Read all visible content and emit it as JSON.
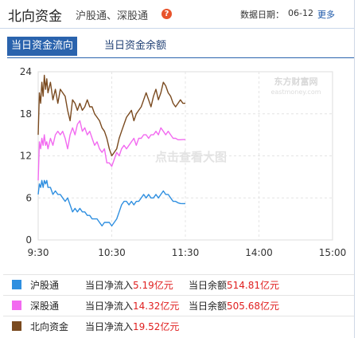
{
  "header": {
    "title": "北向资金",
    "subtitle": "沪股通、深股通",
    "help_glyph": "?",
    "date_label": "数据日期：",
    "date_value": "06-12",
    "more_label": "更多"
  },
  "tabs": [
    {
      "label": "当日资金流向",
      "active": true
    },
    {
      "label": "当日资金余额",
      "active": false
    }
  ],
  "watermark": {
    "cn": "东方财富网",
    "en": "eastmoney.com",
    "center_text": "点击查看大图"
  },
  "colors": {
    "hgt": "#2f8fe0",
    "sgt": "#f26af0",
    "north": "#7a4a1f",
    "accent": "#2a63ad",
    "value_red": "#e02020"
  },
  "chart_data": {
    "type": "line",
    "title": "",
    "xlabel": "",
    "ylabel": "",
    "ylim": [
      0,
      24
    ],
    "yticks": [
      "0",
      "6",
      "12",
      "18",
      "24"
    ],
    "xticks": [
      "9:30",
      "10:30",
      "11:30",
      "14:00",
      "15:00"
    ],
    "x_minutes_range": [
      0,
      240
    ],
    "grid": true,
    "series": [
      {
        "name": "北向资金",
        "color": "#7a4a1f",
        "points": [
          [
            0,
            15
          ],
          [
            1,
            21
          ],
          [
            2,
            19.5
          ],
          [
            3,
            22.5
          ],
          [
            4,
            20.5
          ],
          [
            5,
            23.5
          ],
          [
            6,
            21.5
          ],
          [
            7,
            23
          ],
          [
            8,
            21
          ],
          [
            10,
            22.5
          ],
          [
            12,
            20
          ],
          [
            14,
            21.5
          ],
          [
            16,
            19.5
          ],
          [
            18,
            21.5
          ],
          [
            20,
            21
          ],
          [
            22,
            20.5
          ],
          [
            24,
            18.5
          ],
          [
            26,
            17
          ],
          [
            28,
            20
          ],
          [
            30,
            19.5
          ],
          [
            32,
            18.5
          ],
          [
            34,
            19.5
          ],
          [
            36,
            18.5
          ],
          [
            38,
            19
          ],
          [
            40,
            20
          ],
          [
            42,
            19
          ],
          [
            44,
            19
          ],
          [
            46,
            18
          ],
          [
            48,
            17.5
          ],
          [
            50,
            17
          ],
          [
            52,
            16
          ],
          [
            54,
            15.5
          ],
          [
            56,
            14.5
          ],
          [
            58,
            13
          ],
          [
            60,
            12
          ],
          [
            62,
            12.5
          ],
          [
            64,
            13
          ],
          [
            66,
            14.5
          ],
          [
            68,
            15.5
          ],
          [
            70,
            16.5
          ],
          [
            72,
            17.5
          ],
          [
            74,
            18
          ],
          [
            76,
            18.5
          ],
          [
            78,
            17
          ],
          [
            80,
            18
          ],
          [
            82,
            18.5
          ],
          [
            84,
            19
          ],
          [
            86,
            20
          ],
          [
            88,
            21
          ],
          [
            90,
            20
          ],
          [
            92,
            19
          ],
          [
            94,
            20.5
          ],
          [
            96,
            21.5
          ],
          [
            98,
            20
          ],
          [
            100,
            21
          ],
          [
            102,
            22.5
          ],
          [
            104,
            22
          ],
          [
            106,
            21
          ],
          [
            108,
            20.5
          ],
          [
            110,
            19.5
          ],
          [
            112,
            19
          ],
          [
            114,
            19.5
          ],
          [
            116,
            20
          ],
          [
            118,
            19.5
          ],
          [
            120,
            19.5
          ]
        ]
      },
      {
        "name": "深股通",
        "color": "#f26af0",
        "points": [
          [
            0,
            8.5
          ],
          [
            1,
            14
          ],
          [
            2,
            13
          ],
          [
            3,
            14.5
          ],
          [
            4,
            13.5
          ],
          [
            5,
            15
          ],
          [
            6,
            13.5
          ],
          [
            7,
            14
          ],
          [
            8,
            13
          ],
          [
            10,
            14.5
          ],
          [
            12,
            13.5
          ],
          [
            14,
            15
          ],
          [
            16,
            15.5
          ],
          [
            18,
            15
          ],
          [
            20,
            15.5
          ],
          [
            22,
            14.5
          ],
          [
            24,
            13
          ],
          [
            26,
            15
          ],
          [
            28,
            16
          ],
          [
            30,
            15
          ],
          [
            32,
            16.5
          ],
          [
            34,
            17
          ],
          [
            36,
            15.5
          ],
          [
            38,
            16
          ],
          [
            40,
            15
          ],
          [
            42,
            15.5
          ],
          [
            44,
            14.5
          ],
          [
            46,
            13.5
          ],
          [
            48,
            14
          ],
          [
            50,
            13
          ],
          [
            52,
            12.5
          ],
          [
            54,
            13
          ],
          [
            56,
            11
          ],
          [
            58,
            11
          ],
          [
            60,
            10.5
          ],
          [
            62,
            11.5
          ],
          [
            64,
            12.5
          ],
          [
            66,
            12
          ],
          [
            68,
            13
          ],
          [
            70,
            13.5
          ],
          [
            72,
            13
          ],
          [
            74,
            13.5
          ],
          [
            76,
            14
          ],
          [
            78,
            14.5
          ],
          [
            80,
            13.5
          ],
          [
            82,
            14.5
          ],
          [
            84,
            14.5
          ],
          [
            86,
            15
          ],
          [
            88,
            15
          ],
          [
            90,
            14.5
          ],
          [
            92,
            15
          ],
          [
            94,
            15
          ],
          [
            96,
            15.5
          ],
          [
            98,
            15
          ],
          [
            100,
            16
          ],
          [
            102,
            15.5
          ],
          [
            104,
            15
          ],
          [
            106,
            15.5
          ],
          [
            108,
            15
          ],
          [
            110,
            14.5
          ],
          [
            112,
            14.5
          ],
          [
            114,
            14.3
          ],
          [
            116,
            14.3
          ],
          [
            118,
            14.32
          ],
          [
            120,
            14.32
          ]
        ]
      },
      {
        "name": "沪股通",
        "color": "#2f8fe0",
        "points": [
          [
            0,
            6.5
          ],
          [
            1,
            8
          ],
          [
            2,
            7.5
          ],
          [
            3,
            8.5
          ],
          [
            4,
            7.5
          ],
          [
            5,
            8.5
          ],
          [
            6,
            8
          ],
          [
            7,
            8.5
          ],
          [
            8,
            7.5
          ],
          [
            10,
            7.5
          ],
          [
            12,
            6.5
          ],
          [
            14,
            7
          ],
          [
            16,
            6.5
          ],
          [
            18,
            6.5
          ],
          [
            20,
            6
          ],
          [
            22,
            5.5
          ],
          [
            24,
            6
          ],
          [
            26,
            5
          ],
          [
            28,
            4
          ],
          [
            30,
            4.5
          ],
          [
            32,
            4
          ],
          [
            34,
            4.5
          ],
          [
            36,
            4
          ],
          [
            38,
            4
          ],
          [
            40,
            3.5
          ],
          [
            42,
            3.5
          ],
          [
            44,
            3
          ],
          [
            46,
            3
          ],
          [
            48,
            3
          ],
          [
            50,
            2.5
          ],
          [
            52,
            2
          ],
          [
            54,
            2.5
          ],
          [
            56,
            2.5
          ],
          [
            58,
            2.5
          ],
          [
            60,
            2
          ],
          [
            62,
            2.5
          ],
          [
            64,
            3
          ],
          [
            66,
            4
          ],
          [
            68,
            5
          ],
          [
            70,
            5.5
          ],
          [
            72,
            5.5
          ],
          [
            74,
            5
          ],
          [
            76,
            5.5
          ],
          [
            78,
            5
          ],
          [
            80,
            5.5
          ],
          [
            82,
            5.5
          ],
          [
            84,
            6
          ],
          [
            86,
            6.5
          ],
          [
            88,
            6
          ],
          [
            90,
            6.5
          ],
          [
            92,
            6
          ],
          [
            94,
            6
          ],
          [
            96,
            6.5
          ],
          [
            98,
            6
          ],
          [
            100,
            6.5
          ],
          [
            102,
            7
          ],
          [
            104,
            6.5
          ],
          [
            106,
            6.5
          ],
          [
            108,
            6
          ],
          [
            110,
            5.5
          ],
          [
            112,
            5.5
          ],
          [
            114,
            5.3
          ],
          [
            116,
            5.2
          ],
          [
            118,
            5.19
          ],
          [
            120,
            5.19
          ]
        ]
      }
    ]
  },
  "legend": [
    {
      "name": "沪股通",
      "color": "#2f8fe0",
      "flow_label": "当日净流入",
      "flow_value": "5.19亿元",
      "balance_label": "当日余额",
      "balance_value": "514.81亿元"
    },
    {
      "name": "深股通",
      "color": "#f26af0",
      "flow_label": "当日净流入",
      "flow_value": "14.32亿元",
      "balance_label": "当日余额",
      "balance_value": "505.68亿元"
    },
    {
      "name": "北向资金",
      "color": "#7a4a1f",
      "flow_label": "当日净流入",
      "flow_value": "19.52亿元",
      "balance_label": "",
      "balance_value": ""
    }
  ]
}
